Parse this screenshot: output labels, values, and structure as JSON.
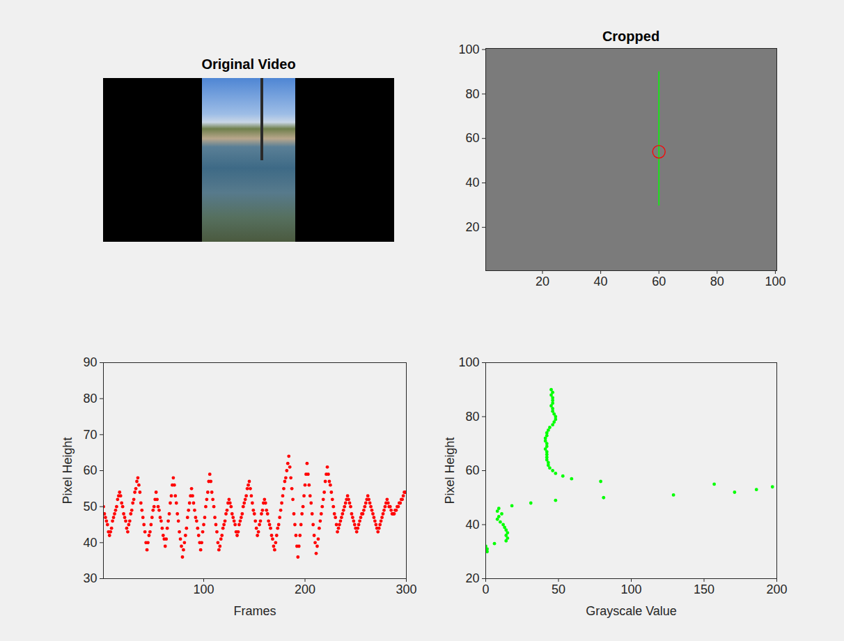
{
  "chart_data": [
    {
      "type": "image",
      "title": "Original Video",
      "tick_labels": false
    },
    {
      "type": "image",
      "title": "Cropped",
      "xlim": [
        0.5,
        100.5
      ],
      "ylim": [
        0.5,
        100.5
      ],
      "xticks": [
        20,
        40,
        60,
        80,
        100
      ],
      "yticks": [
        20,
        40,
        60,
        80,
        100
      ],
      "series": [
        {
          "type": "line",
          "color": "#00ff00",
          "x": [
            60,
            60
          ],
          "values": [
            30,
            90
          ]
        },
        {
          "type": "scatter",
          "marker": "circle",
          "color": "#ff0000",
          "x": [
            60
          ],
          "values": [
            54
          ]
        }
      ]
    },
    {
      "type": "scatter",
      "xlabel": "Frames",
      "ylabel": "Pixel Height",
      "color": "#ff0000",
      "xlim": [
        1,
        300
      ],
      "ylim": [
        30,
        90
      ],
      "xticks": [
        100,
        200,
        300
      ],
      "yticks": [
        30,
        40,
        50,
        60,
        70,
        80,
        90
      ],
      "x": [
        1,
        2,
        3,
        4,
        5,
        6,
        7,
        8,
        9,
        10,
        11,
        12,
        13,
        14,
        15,
        16,
        17,
        18,
        19,
        20,
        21,
        22,
        23,
        24,
        25,
        26,
        27,
        28,
        29,
        30,
        31,
        32,
        33,
        34,
        35,
        36,
        37,
        38,
        39,
        40,
        41,
        42,
        43,
        44,
        45,
        46,
        47,
        48,
        49,
        50,
        51,
        52,
        53,
        54,
        55,
        56,
        57,
        58,
        59,
        60,
        61,
        62,
        63,
        64,
        65,
        66,
        67,
        68,
        69,
        70,
        71,
        72,
        73,
        74,
        75,
        76,
        77,
        78,
        79,
        80,
        81,
        82,
        83,
        84,
        85,
        86,
        87,
        88,
        89,
        90,
        91,
        92,
        93,
        94,
        95,
        96,
        97,
        98,
        99,
        100,
        101,
        102,
        103,
        104,
        105,
        106,
        107,
        108,
        109,
        110,
        111,
        112,
        113,
        114,
        115,
        116,
        117,
        118,
        119,
        120,
        121,
        122,
        123,
        124,
        125,
        126,
        127,
        128,
        129,
        130,
        131,
        132,
        133,
        134,
        135,
        136,
        137,
        138,
        139,
        140,
        141,
        142,
        143,
        144,
        145,
        146,
        147,
        148,
        149,
        150,
        151,
        152,
        153,
        154,
        155,
        156,
        157,
        158,
        159,
        160,
        161,
        162,
        163,
        164,
        165,
        166,
        167,
        168,
        169,
        170,
        171,
        172,
        173,
        174,
        175,
        176,
        177,
        178,
        179,
        180,
        181,
        182,
        183,
        184,
        185,
        186,
        187,
        188,
        189,
        190,
        191,
        192,
        193,
        194,
        195,
        196,
        197,
        198,
        199,
        200,
        201,
        202,
        203,
        204,
        205,
        206,
        207,
        208,
        209,
        210,
        211,
        212,
        213,
        214,
        215,
        216,
        217,
        218,
        219,
        220,
        221,
        222,
        223,
        224,
        225,
        226,
        227,
        228,
        229,
        230,
        231,
        232,
        233,
        234,
        235,
        236,
        237,
        238,
        239,
        240,
        241,
        242,
        243,
        244,
        245,
        246,
        247,
        248,
        249,
        250,
        251,
        252,
        253,
        254,
        255,
        256,
        257,
        258,
        259,
        260,
        261,
        262,
        263,
        264,
        265,
        266,
        267,
        268,
        269,
        270,
        271,
        272,
        273,
        274,
        275,
        276,
        277,
        278,
        279,
        280,
        281,
        282,
        283,
        284,
        285,
        286,
        287,
        288,
        289,
        290,
        291,
        292,
        293,
        294,
        295,
        296,
        297,
        298,
        299,
        300
      ],
      "values": [
        50,
        48,
        47,
        46,
        45,
        43,
        42,
        43,
        44,
        46,
        47,
        48,
        49,
        50,
        52,
        53,
        54,
        53,
        51,
        50,
        48,
        47,
        46,
        44,
        43,
        45,
        46,
        48,
        49,
        51,
        52,
        54,
        55,
        57,
        58,
        56,
        54,
        51,
        49,
        47,
        45,
        43,
        40,
        38,
        40,
        42,
        43,
        45,
        47,
        49,
        50,
        52,
        54,
        52,
        50,
        49,
        47,
        46,
        44,
        42,
        41,
        39,
        41,
        44,
        46,
        48,
        51,
        53,
        56,
        58,
        56,
        53,
        51,
        48,
        46,
        43,
        41,
        39,
        36,
        38,
        40,
        42,
        44,
        47,
        49,
        51,
        53,
        55,
        53,
        51,
        49,
        47,
        46,
        44,
        42,
        40,
        38,
        40,
        43,
        45,
        47,
        50,
        52,
        54,
        57,
        59,
        57,
        54,
        52,
        50,
        47,
        45,
        43,
        40,
        38,
        39,
        41,
        42,
        44,
        45,
        46,
        48,
        49,
        51,
        52,
        51,
        50,
        48,
        47,
        46,
        45,
        43,
        42,
        43,
        45,
        46,
        47,
        48,
        50,
        51,
        52,
        53,
        55,
        56,
        57,
        55,
        53,
        51,
        49,
        48,
        46,
        44,
        42,
        43,
        45,
        46,
        48,
        49,
        51,
        52,
        51,
        49,
        48,
        46,
        45,
        44,
        42,
        41,
        39,
        38,
        40,
        42,
        44,
        45,
        47,
        49,
        51,
        53,
        55,
        57,
        58,
        60,
        62,
        64,
        61,
        58,
        55,
        52,
        48,
        45,
        42,
        39,
        36,
        39,
        42,
        45,
        48,
        50,
        53,
        56,
        59,
        62,
        59,
        56,
        53,
        51,
        48,
        45,
        42,
        40,
        37,
        39,
        41,
        44,
        46,
        48,
        50,
        52,
        54,
        57,
        59,
        61,
        59,
        57,
        56,
        54,
        52,
        50,
        48,
        47,
        45,
        43,
        44,
        45,
        46,
        47,
        48,
        49,
        50,
        51,
        52,
        53,
        52,
        51,
        50,
        48,
        47,
        46,
        45,
        44,
        43,
        44,
        45,
        46,
        47,
        48,
        48,
        49,
        50,
        51,
        52,
        53,
        52,
        51,
        50,
        49,
        48,
        47,
        46,
        45,
        44,
        43,
        44,
        45,
        46,
        47,
        48,
        49,
        50,
        51,
        52,
        51,
        50,
        50,
        49,
        48,
        48,
        48,
        49,
        49,
        50,
        50,
        51,
        51,
        52,
        52,
        53,
        54,
        54,
        54
      ]
    },
    {
      "type": "scatter",
      "xlabel": "Grayscale Value",
      "ylabel": "Pixel Height",
      "color": "#00ff00",
      "xlim": [
        0,
        200
      ],
      "ylim": [
        20,
        100
      ],
      "xticks": [
        0,
        50,
        100,
        150,
        200
      ],
      "yticks": [
        20,
        40,
        60,
        80,
        100
      ],
      "x": [
        1,
        1,
        0,
        6,
        14,
        15,
        14,
        15,
        14,
        13,
        12,
        10,
        8,
        9,
        11,
        8,
        9,
        18,
        31,
        48,
        81,
        129,
        171,
        186,
        197,
        157,
        79,
        59,
        53,
        48,
        46,
        44,
        43,
        43,
        42,
        42,
        42,
        42,
        41,
        42,
        42,
        41,
        41,
        42,
        42,
        43,
        44,
        46,
        47,
        48,
        48,
        47,
        46,
        46,
        45,
        46,
        46,
        46,
        45,
        46,
        45
      ],
      "values": [
        30,
        31,
        32,
        33,
        34,
        35,
        36,
        37,
        38,
        39,
        40,
        41,
        42,
        43,
        44,
        45,
        46,
        47,
        48,
        49,
        50,
        51,
        52,
        53,
        54,
        55,
        56,
        57,
        58,
        59,
        60,
        61,
        62,
        63,
        64,
        65,
        66,
        67,
        68,
        69,
        70,
        71,
        72,
        73,
        74,
        75,
        76,
        77,
        78,
        79,
        80,
        81,
        82,
        83,
        84,
        85,
        86,
        87,
        88,
        89,
        90
      ]
    }
  ]
}
